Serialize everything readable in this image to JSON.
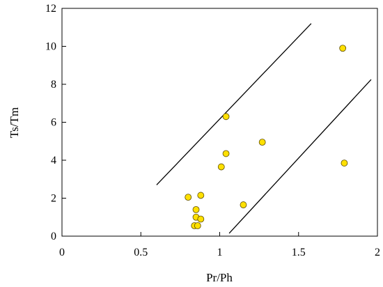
{
  "chart_data": {
    "type": "scatter",
    "xlabel": "Pr/Ph",
    "ylabel": "Ts/Tm",
    "xlim": [
      0,
      2
    ],
    "ylim": [
      0,
      12
    ],
    "x_ticks": [
      "0",
      "0.5",
      "1",
      "1.5",
      "2"
    ],
    "y_ticks": [
      "0",
      "2",
      "4",
      "6",
      "8",
      "10",
      "12"
    ],
    "grid": false,
    "marker_fill": "#ffe000",
    "marker_stroke": "#5a4a00",
    "points": [
      {
        "x": 1.78,
        "y": 9.9
      },
      {
        "x": 1.04,
        "y": 6.3
      },
      {
        "x": 1.27,
        "y": 4.95
      },
      {
        "x": 1.04,
        "y": 4.35
      },
      {
        "x": 1.01,
        "y": 3.65
      },
      {
        "x": 1.79,
        "y": 3.85
      },
      {
        "x": 0.8,
        "y": 2.05
      },
      {
        "x": 0.88,
        "y": 2.15
      },
      {
        "x": 1.15,
        "y": 1.65
      },
      {
        "x": 0.85,
        "y": 1.4
      },
      {
        "x": 0.85,
        "y": 1.0
      },
      {
        "x": 0.88,
        "y": 0.9
      },
      {
        "x": 0.84,
        "y": 0.55
      },
      {
        "x": 0.86,
        "y": 0.55
      }
    ],
    "trend_lines": [
      {
        "x": [
          0.6,
          1.58
        ],
        "y": [
          2.7,
          11.2
        ]
      },
      {
        "x": [
          1.06,
          1.96
        ],
        "y": [
          0.15,
          8.25
        ]
      }
    ]
  }
}
